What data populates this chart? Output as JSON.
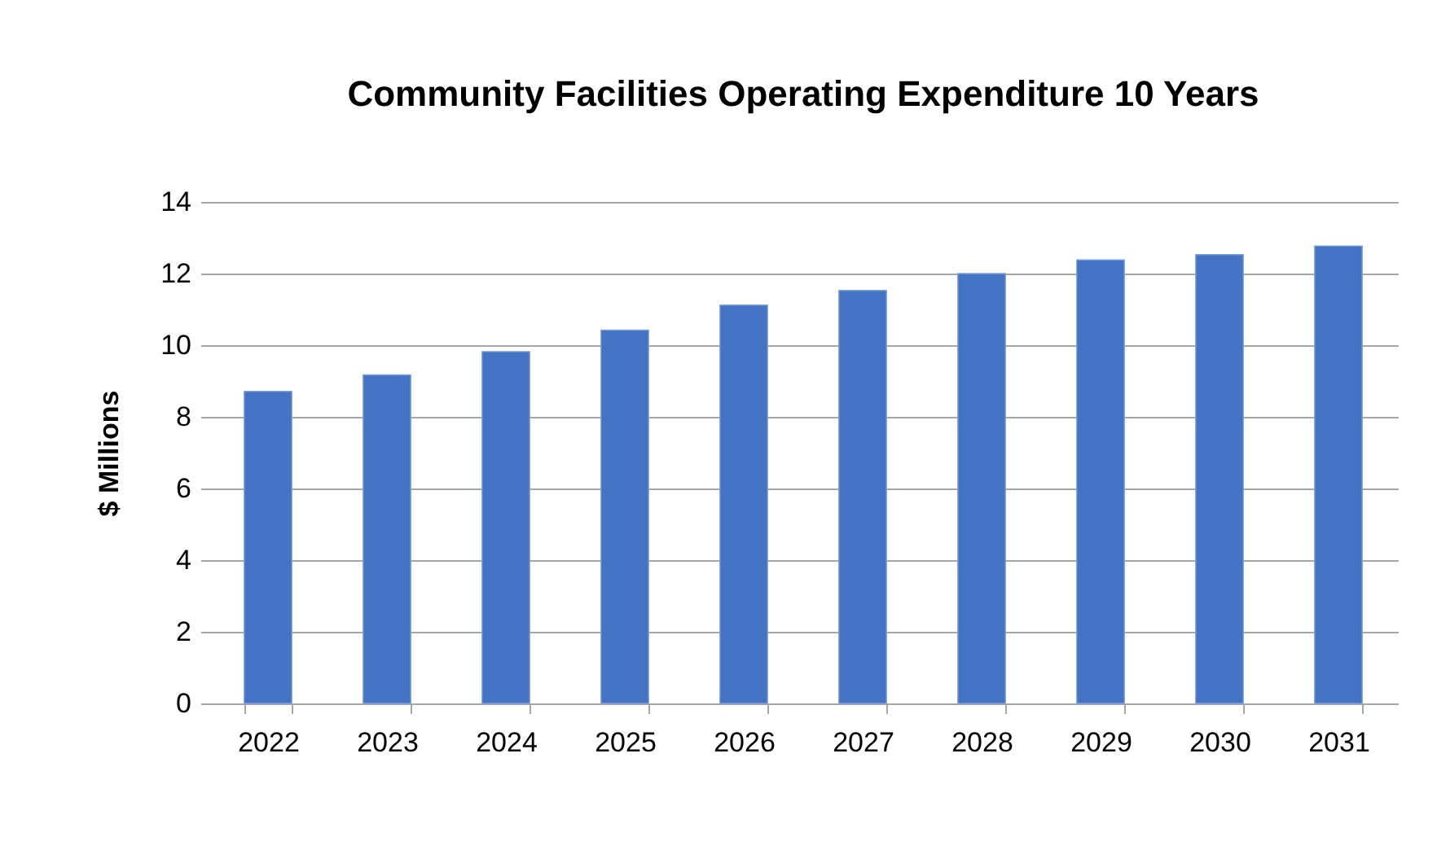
{
  "chart_data": {
    "type": "bar",
    "title": "Community Facilities Operating Expenditure 10 Years",
    "ylabel": "$ Millions",
    "categories": [
      "2022",
      "2023",
      "2024",
      "2025",
      "2026",
      "2027",
      "2028",
      "2029",
      "2030",
      "2031"
    ],
    "values": [
      8.71,
      9.17,
      9.82,
      10.42,
      11.12,
      11.53,
      12.0,
      12.38,
      12.53,
      12.77
    ],
    "color": "#4472c4",
    "ylim": [
      0,
      14
    ],
    "yticks": [
      0,
      2,
      4,
      6,
      8,
      10,
      12,
      14
    ],
    "grid": "y"
  }
}
